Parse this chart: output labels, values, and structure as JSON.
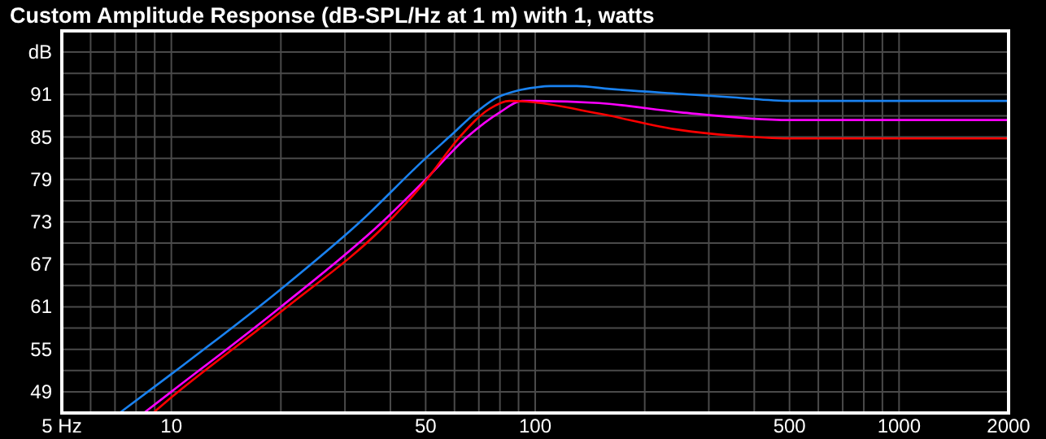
{
  "chart_data": {
    "type": "line",
    "title": "Custom Amplitude Response (dB-SPL/Hz at 1 m) with 1, watts",
    "log": "x",
    "grid": true,
    "line_style": "solid",
    "marker": "none",
    "xlim": [
      5,
      2000
    ],
    "ylim": [
      46,
      100
    ],
    "xticks": [
      {
        "value": 5,
        "label": "5 Hz"
      },
      {
        "value": 6,
        "label": null
      },
      {
        "value": 7,
        "label": null
      },
      {
        "value": 8,
        "label": null
      },
      {
        "value": 9,
        "label": null
      },
      10,
      {
        "value": 20,
        "label": null
      },
      {
        "value": 30,
        "label": null
      },
      {
        "value": 40,
        "label": null
      },
      50,
      {
        "value": 60,
        "label": null
      },
      {
        "value": 70,
        "label": null
      },
      {
        "value": 80,
        "label": null
      },
      {
        "value": 90,
        "label": null
      },
      100,
      {
        "value": 200,
        "label": null
      },
      {
        "value": 300,
        "label": null
      },
      {
        "value": 400,
        "label": null
      },
      500,
      {
        "value": 600,
        "label": null
      },
      {
        "value": 700,
        "label": null
      },
      {
        "value": 800,
        "label": null
      },
      {
        "value": 900,
        "label": null
      },
      1000,
      2000
    ],
    "yticks": [
      49,
      {
        "value": 52,
        "label": null
      },
      55,
      {
        "value": 58,
        "label": null
      },
      61,
      {
        "value": 64,
        "label": null
      },
      67,
      {
        "value": 70,
        "label": null
      },
      73,
      {
        "value": 76,
        "label": null
      },
      79,
      {
        "value": 82,
        "label": null
      },
      85,
      {
        "value": 88,
        "label": null
      },
      91,
      {
        "value": 94,
        "label": null
      },
      {
        "value": 97,
        "label": "dB"
      }
    ],
    "series": [
      {
        "color": "#1a82f0",
        "x": [
          7.2,
          10,
          20,
          33,
          50,
          58,
          70,
          78,
          90,
          100,
          110,
          130,
          160,
          250,
          350,
          500,
          2000
        ],
        "values": [
          46,
          51.5,
          63.5,
          73,
          82,
          85,
          88.8,
          90.5,
          91.6,
          92,
          92.2,
          92.2,
          91.8,
          91.1,
          90.6,
          90.1,
          90.1
        ]
      },
      {
        "color": "#ff00ff",
        "x": [
          8.4,
          10,
          20,
          38,
          50,
          65,
          80,
          92,
          100,
          150,
          250,
          500,
          2000
        ],
        "values": [
          46,
          49,
          61,
          73,
          79,
          85,
          88.5,
          90.1,
          90.1,
          89.8,
          88.5,
          87.4,
          87.4
        ]
      },
      {
        "color": "#ff0000",
        "x": [
          8.9,
          10,
          20,
          39.5,
          50,
          62,
          75,
          85,
          95,
          150,
          250,
          350,
          500,
          2000
        ],
        "values": [
          46,
          48.2,
          60.3,
          73,
          78.8,
          85,
          89,
          90.1,
          90,
          88.3,
          86,
          85.2,
          84.8,
          84.8
        ]
      }
    ]
  }
}
